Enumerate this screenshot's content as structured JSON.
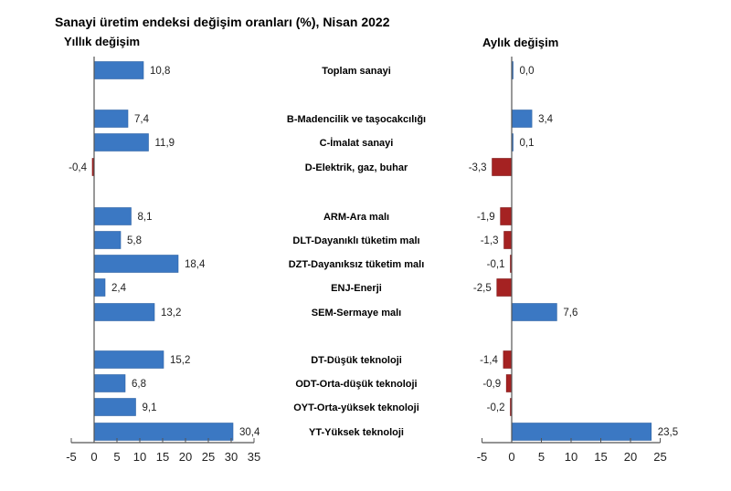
{
  "chart_data": {
    "type": "bar",
    "orientation": "horizontal",
    "title": "Sanayi üretim endeksi değişim oranları (%), Nisan 2022",
    "categories": [
      "Toplam sanayi",
      "B-Madencilik ve taşocakcılığı",
      "C-İmalat sanayi",
      "D-Elektrik, gaz, buhar",
      "ARM-Ara malı",
      "DLT-Dayanıklı tüketim malı",
      "DZT-Dayanıksız tüketim malı",
      "ENJ-Enerji",
      "SEM-Sermaye malı",
      "DT-Düşük teknoloji",
      "ODT-Orta-düşük teknoloji",
      "OYT-Orta-yüksek teknoloji",
      "YT-Yüksek teknoloji"
    ],
    "groups": [
      [
        0
      ],
      [
        1,
        2,
        3
      ],
      [
        4,
        5,
        6,
        7,
        8
      ],
      [
        9,
        10,
        11,
        12
      ]
    ],
    "colors": {
      "positive": "#3b78c3",
      "negative": "#a52222",
      "axis": "#555555"
    },
    "panels": [
      {
        "name": "Yıllık değişim",
        "values": [
          10.8,
          7.4,
          11.9,
          -0.4,
          8.1,
          5.8,
          18.4,
          2.4,
          13.2,
          15.2,
          6.8,
          9.1,
          30.4
        ],
        "labels": [
          "10,8",
          "7,4",
          "11,9",
          "-0,4",
          "8,1",
          "5,8",
          "18,4",
          "2,4",
          "13,2",
          "15,2",
          "6,8",
          "9,1",
          "30,4"
        ],
        "xlim": [
          -5,
          35
        ],
        "ticks": [
          -5,
          0,
          5,
          10,
          15,
          20,
          25,
          30,
          35
        ]
      },
      {
        "name": "Aylık değişim",
        "values": [
          0.0,
          3.4,
          0.1,
          -3.3,
          -1.9,
          -1.3,
          -0.1,
          -2.5,
          7.6,
          -1.4,
          -0.9,
          -0.2,
          23.5
        ],
        "labels": [
          "0,0",
          "3,4",
          "0,1",
          "-3,3",
          "-1,9",
          "-1,3",
          "-0,1",
          "-2,5",
          "7,6",
          "-1,4",
          "-0,9",
          "-0,2",
          "23,5"
        ],
        "xlim": [
          -5,
          25
        ],
        "ticks": [
          -5,
          0,
          5,
          10,
          15,
          20,
          25
        ]
      }
    ],
    "grid": false,
    "legend": "none"
  }
}
